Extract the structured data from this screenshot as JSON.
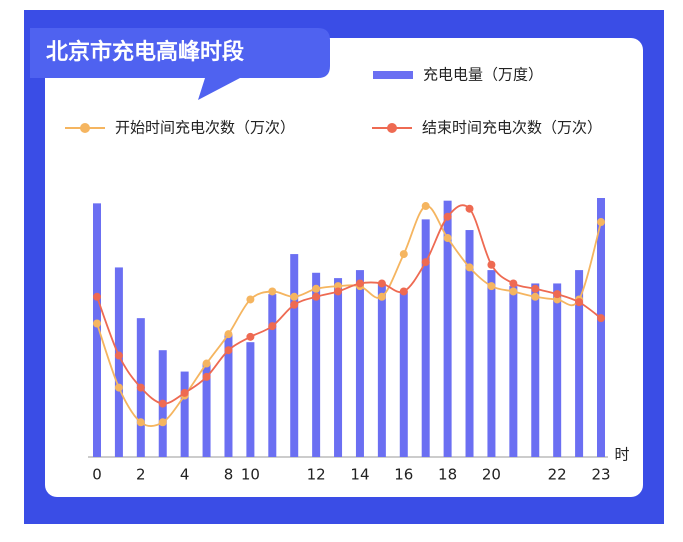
{
  "chart_data": {
    "type": "bar",
    "title": "北京市充电高峰时段",
    "x_label": "时",
    "categories": [
      "0",
      null,
      "2",
      null,
      "4",
      null,
      "8",
      "10",
      null,
      null,
      "12",
      null,
      "14",
      null,
      "16",
      null,
      "18",
      null,
      "20",
      null,
      null,
      "22",
      null,
      "23"
    ],
    "ylim": [
      0,
      100
    ],
    "smooth": true,
    "series": [
      {
        "name": "充电电量（万度）",
        "type": "bar",
        "color": "#6b6ff2",
        "values": [
          95,
          71,
          52,
          40,
          32,
          35,
          46,
          43,
          61,
          76,
          69,
          67,
          70,
          65,
          62,
          89,
          96,
          85,
          70,
          64,
          65,
          65,
          70,
          97
        ]
      },
      {
        "name": "开始时间充电次数（万次）",
        "type": "line",
        "color": "#f5b560",
        "values": [
          50,
          26,
          13,
          13,
          23,
          35,
          46,
          59,
          62,
          60,
          63,
          64,
          64,
          60,
          76,
          94,
          82,
          71,
          64,
          62,
          60,
          59,
          59,
          88
        ]
      },
      {
        "name": "结束时间充电次数（万次）",
        "type": "line",
        "color": "#ee6a52",
        "values": [
          60,
          38,
          26,
          20,
          24,
          30,
          40,
          45,
          49,
          57,
          60,
          62,
          65,
          65,
          62,
          73,
          90,
          93,
          72,
          65,
          63,
          61,
          58,
          52
        ]
      }
    ]
  }
}
